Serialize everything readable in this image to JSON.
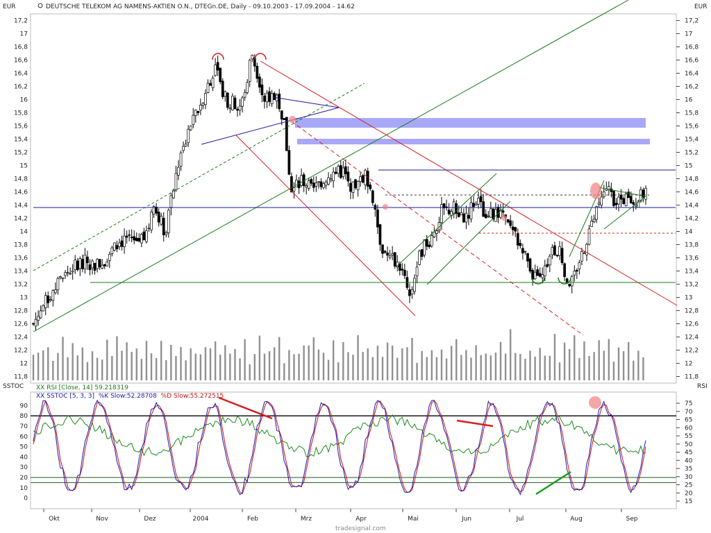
{
  "header": {
    "title": "DEUTSCHE TELEKOM AG NAMENS-AKTIEN O.N., DTEGn.DE, Daily - 09.10.2003 - 17.09.2004 - 14.62",
    "currency_left": "EUR",
    "currency_right": "EUR"
  },
  "lower_panel": {
    "left_label": "SSTOC",
    "right_label": "RSI",
    "legend_rsi": "XX RSI [Close, 14] 59.218319",
    "legend_sstoc_prefix": "XX SSTOC [5, 3, 3]",
    "legend_k": "%K Slow:52.28708",
    "legend_d": "%D Slow:55.272515"
  },
  "watermark": "tradesignal.com",
  "colors": {
    "up_candle": "#ffffff",
    "down_candle": "#000000",
    "volume": "#909090",
    "trend_green": "#1a7a1a",
    "trend_red": "#d42020",
    "support_blue": "#1a1aa0",
    "resistance_band": "#a8a8f8",
    "k_line": "#1a1ab0",
    "d_line": "#d01010",
    "rsi_line": "#1a8a1a"
  },
  "chart_data": [
    {
      "type": "candlestick",
      "title": "DEUTSCHE TELEKOM AG NAMENS-AKTIEN O.N., DTEGn.DE, Daily - 09.10.2003 - 17.09.2004 - 14.62",
      "ylabel": "EUR",
      "ylim": [
        11.7,
        17.3
      ],
      "y_ticks": [
        "11,8",
        "12",
        "12,2",
        "12,4",
        "12,6",
        "12,8",
        "13",
        "13,2",
        "13,4",
        "13,6",
        "13,8",
        "14",
        "14,2",
        "14,4",
        "14,6",
        "14,8",
        "15",
        "15,2",
        "15,4",
        "15,6",
        "15,8",
        "16",
        "16,2",
        "16,4",
        "16,6",
        "16,8",
        "17",
        "17,2"
      ],
      "x_ticks": [
        "Okt",
        "Nov",
        "Dez",
        "2004",
        "Feb",
        "Mrz",
        "Apr",
        "Mai",
        "Jun",
        "Jul",
        "Aug",
        "Sep"
      ],
      "last_value": 14.62,
      "close_path": [
        [
          0,
          12.6
        ],
        [
          10,
          12.95
        ],
        [
          22,
          13.3
        ],
        [
          35,
          13.55
        ],
        [
          50,
          13.5
        ],
        [
          62,
          13.75
        ],
        [
          72,
          13.95
        ],
        [
          80,
          13.85
        ],
        [
          88,
          14.1
        ],
        [
          92,
          14.4
        ],
        [
          100,
          14.0
        ],
        [
          110,
          15.0
        ],
        [
          118,
          15.5
        ],
        [
          128,
          16.0
        ],
        [
          138,
          16.5
        ],
        [
          146,
          16.0
        ],
        [
          158,
          15.9
        ],
        [
          166,
          16.7
        ],
        [
          176,
          16.0
        ],
        [
          184,
          16.1
        ],
        [
          190,
          15.7
        ],
        [
          196,
          14.6
        ],
        [
          204,
          14.8
        ],
        [
          212,
          14.6
        ],
        [
          220,
          14.8
        ],
        [
          228,
          14.9
        ],
        [
          236,
          14.9
        ],
        [
          244,
          14.6
        ],
        [
          252,
          14.9
        ],
        [
          258,
          14.5
        ],
        [
          264,
          13.8
        ],
        [
          270,
          13.6
        ],
        [
          278,
          13.5
        ],
        [
          286,
          13.0
        ],
        [
          294,
          13.7
        ],
        [
          302,
          13.9
        ],
        [
          310,
          14.3
        ],
        [
          320,
          14.35
        ],
        [
          328,
          14.2
        ],
        [
          336,
          14.5
        ],
        [
          344,
          14.2
        ],
        [
          352,
          14.3
        ],
        [
          360,
          14.1
        ],
        [
          368,
          13.85
        ],
        [
          376,
          13.5
        ],
        [
          384,
          13.2
        ],
        [
          392,
          13.65
        ],
        [
          400,
          13.7
        ],
        [
          406,
          13.2
        ],
        [
          414,
          13.5
        ],
        [
          422,
          14.0
        ],
        [
          430,
          14.4
        ],
        [
          436,
          14.65
        ],
        [
          442,
          14.45
        ],
        [
          450,
          14.5
        ],
        [
          458,
          14.45
        ],
        [
          465,
          14.62
        ]
      ],
      "volume_sample": [
        40,
        55,
        35,
        60,
        30,
        45,
        70,
        35,
        50,
        40,
        65,
        30,
        55,
        45,
        38,
        62,
        48,
        80,
        35,
        52
      ]
    },
    {
      "type": "line",
      "title": "SSTOC / RSI",
      "ylim_left": [
        -3,
        97
      ],
      "ylim_right": [
        15,
        78
      ],
      "y_ticks_left": [
        "0",
        "10",
        "20",
        "30",
        "40",
        "50",
        "60",
        "70",
        "80",
        "90"
      ],
      "y_ticks_right": [
        "15",
        "20",
        "25",
        "30",
        "35",
        "40",
        "45",
        "50",
        "55",
        "60",
        "65",
        "70",
        "75"
      ],
      "levels": [
        80,
        20,
        15
      ],
      "series": [
        {
          "name": "%K Slow",
          "color": "#1a1ab0",
          "last": 52.28708
        },
        {
          "name": "%D Slow",
          "color": "#d01010",
          "last": 55.272515
        },
        {
          "name": "RSI",
          "color": "#1a8a1a",
          "last": 59.218319
        }
      ]
    }
  ]
}
